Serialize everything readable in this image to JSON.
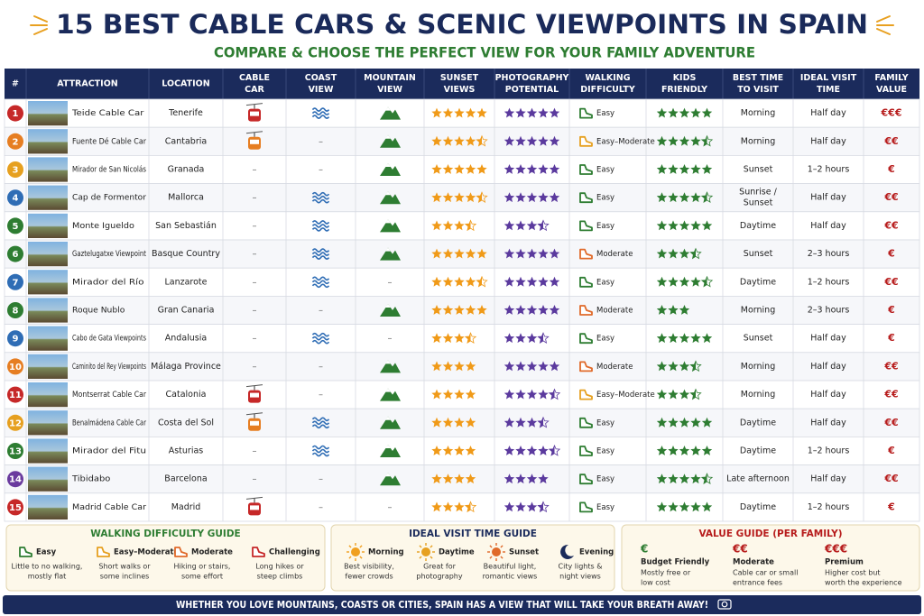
{
  "header": {
    "title": "15 BEST CABLE CARS & SCENIC VIEWPOINTS IN SPAIN",
    "subtitle": "COMPARE & CHOOSE THE PERFECT VIEW FOR YOUR FAMILY ADVENTURE"
  },
  "table": {
    "columns": [
      [
        "#"
      ],
      [
        "ATTRACTION"
      ],
      [
        "LOCATION"
      ],
      [
        "CABLE",
        "CAR"
      ],
      [
        "COAST",
        "VIEW"
      ],
      [
        "MOUNTAIN",
        "VIEW"
      ],
      [
        "SUNSET",
        "VIEWS"
      ],
      [
        "PHOTOGRAPHY",
        "POTENTIAL"
      ],
      [
        "WALKING",
        "DIFFICULTY"
      ],
      [
        "KIDS",
        "FRIENDLY"
      ],
      [
        "BEST TIME",
        "TO VISIT"
      ],
      [
        "IDEAL VISIT",
        "TIME"
      ],
      [
        "FAMILY",
        "VALUE"
      ]
    ],
    "rows": [
      [
        1,
        "Teide Cable Car",
        "Tenerife",
        "#c62828",
        true,
        true,
        5,
        5,
        "Easy",
        5,
        [
          "Morning"
        ],
        "Half day",
        "€€€"
      ],
      [
        2,
        "Fuente Dé Cable Car",
        "Cantabria",
        "#e67e22",
        "–",
        true,
        4.5,
        5,
        "Easy–Moderate",
        4.5,
        [
          "Morning"
        ],
        "Half day",
        "€€"
      ],
      [
        3,
        "Mirador de San Nicolás",
        "Granada",
        "–",
        "–",
        true,
        5,
        5,
        "Easy",
        5,
        [
          "Sunset"
        ],
        "1–2 hours",
        "€"
      ],
      [
        4,
        "Cap de Formentor",
        "Mallorca",
        "–",
        true,
        true,
        4.5,
        5,
        "Easy",
        4.5,
        [
          "Sunrise /",
          "Sunset"
        ],
        "Half day",
        "€€"
      ],
      [
        5,
        "Monte Igueldo",
        "San Sebastián",
        "–",
        true,
        true,
        3.5,
        3.5,
        "Easy",
        5,
        [
          "Daytime"
        ],
        "Half day",
        "€€"
      ],
      [
        6,
        "Gaztelugatxe Viewpoint",
        "Basque Country",
        "–",
        true,
        true,
        5,
        5,
        "Moderate",
        3.5,
        [
          "Sunset"
        ],
        "2–3 hours",
        "€"
      ],
      [
        7,
        "Mirador del Río",
        "Lanzarote",
        "–",
        true,
        "–",
        4.5,
        5,
        "Easy",
        4.5,
        [
          "Daytime"
        ],
        "1–2 hours",
        "€€"
      ],
      [
        8,
        "Roque Nublo",
        "Gran Canaria",
        "–",
        "–",
        true,
        5,
        5,
        "Moderate",
        3,
        [
          "Morning"
        ],
        "2–3 hours",
        "€"
      ],
      [
        9,
        "Cabo de Gata Viewpoints",
        "Andalusia",
        "–",
        true,
        "–",
        3.5,
        3.5,
        "Easy",
        5,
        [
          "Sunset"
        ],
        "Half day",
        "€"
      ],
      [
        10,
        "Caminito del Rey Viewpoints",
        "Málaga Province",
        "–",
        "–",
        true,
        4,
        5,
        "Moderate",
        3.5,
        [
          "Morning"
        ],
        "Half day",
        "€€"
      ],
      [
        11,
        "Montserrat Cable Car",
        "Catalonia",
        "#c62828",
        "–",
        true,
        4,
        4.5,
        "Easy–Moderate",
        3.5,
        [
          "Morning"
        ],
        "Half day",
        "€€"
      ],
      [
        12,
        "Benalmádena Cable Car",
        "Costa del Sol",
        "#e67e22",
        true,
        true,
        4,
        3.5,
        "Easy",
        5,
        [
          "Daytime"
        ],
        "Half day",
        "€€"
      ],
      [
        13,
        "Mirador del Fitu",
        "Asturias",
        "–",
        true,
        true,
        4,
        4.5,
        "Easy",
        5,
        [
          "Daytime"
        ],
        "1–2 hours",
        "€"
      ],
      [
        14,
        "Tibidabo",
        "Barcelona",
        "–",
        "–",
        true,
        4,
        4,
        "Easy",
        4.5,
        [
          "Late afternoon"
        ],
        "Half day",
        "€€"
      ],
      [
        15,
        "Madrid Cable Car",
        "Madrid",
        "#c62828",
        "–",
        "–",
        3.5,
        3.5,
        "Easy",
        5,
        [
          "Daytime"
        ],
        "1–2 hours",
        "€"
      ]
    ]
  },
  "guides": {
    "walking": {
      "title": "WALKING DIFFICULTY GUIDE",
      "items": [
        {
          "label": "Easy",
          "desc": [
            "Little to no walking,",
            "mostly flat"
          ]
        },
        {
          "label": "Easy–Moderate",
          "desc": [
            "Short walks or",
            "some inclines"
          ]
        },
        {
          "label": "Moderate",
          "desc": [
            "Hiking or stairs,",
            "some effort"
          ]
        },
        {
          "label": "Challenging",
          "desc": [
            "Long hikes or",
            "steep climbs"
          ]
        }
      ]
    },
    "visit": {
      "title": "IDEAL VISIT TIME GUIDE",
      "items": [
        {
          "label": "Morning",
          "desc": [
            "Best visibility,",
            "fewer crowds"
          ]
        },
        {
          "label": "Daytime",
          "desc": [
            "Great for",
            "photography"
          ]
        },
        {
          "label": "Sunset",
          "desc": [
            "Beautiful light,",
            "romantic views"
          ]
        },
        {
          "label": "Evening",
          "desc": [
            "City lights &",
            "night views"
          ]
        }
      ]
    },
    "value": {
      "title": "VALUE GUIDE (PER FAMILY)",
      "items": [
        {
          "symbol": "€",
          "label": "Budget Friendly",
          "desc": [
            "Mostly free or",
            "low cost"
          ]
        },
        {
          "symbol": "€€",
          "label": "Moderate",
          "desc": [
            "Cable car or small",
            "entrance fees"
          ]
        },
        {
          "symbol": "€€€",
          "label": "Premium",
          "desc": [
            "Higher cost but",
            "worth the experience"
          ]
        }
      ]
    }
  },
  "footer": "WHETHER YOU LOVE MOUNTAINS, COASTS OR CITIES, SPAIN HAS A VIEW THAT WILL TAKE YOUR BREATH AWAY!"
}
